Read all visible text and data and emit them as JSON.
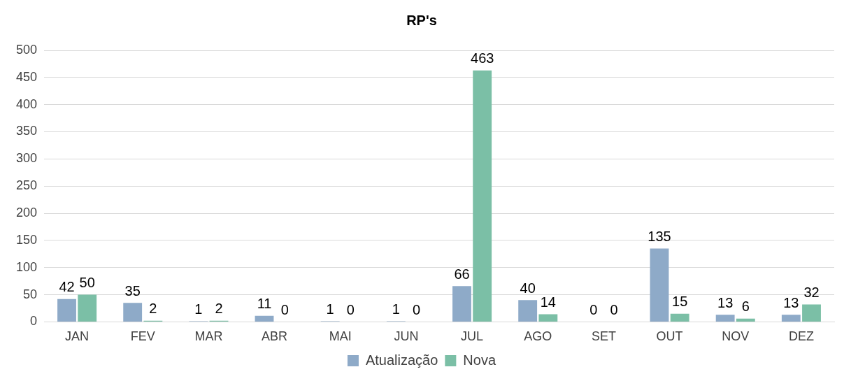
{
  "chart_data": {
    "type": "bar",
    "title": "RP's",
    "categories": [
      "JAN",
      "FEV",
      "MAR",
      "ABR",
      "MAI",
      "JUN",
      "JUL",
      "AGO",
      "SET",
      "OUT",
      "NOV",
      "DEZ"
    ],
    "series": [
      {
        "name": "Atualização",
        "color": "#8eaac8",
        "values": [
          42,
          35,
          1,
          11,
          1,
          1,
          66,
          40,
          0,
          135,
          13,
          13
        ]
      },
      {
        "name": "Nova",
        "color": "#7bbfa6",
        "values": [
          50,
          2,
          2,
          0,
          0,
          0,
          463,
          14,
          0,
          15,
          6,
          32
        ]
      }
    ],
    "ylim": [
      0,
      500
    ],
    "yticks": [
      0,
      50,
      100,
      150,
      200,
      250,
      300,
      350,
      400,
      450,
      500
    ],
    "grid": "y",
    "legend": "bottom",
    "data_labels": true
  }
}
